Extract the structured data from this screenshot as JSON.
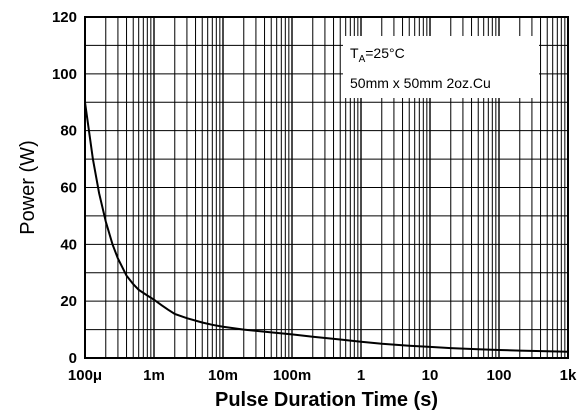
{
  "chart_data": {
    "type": "line",
    "title": "",
    "xlabel": "Pulse Duration Time (s)",
    "ylabel": "Power (W)",
    "x_scale": "log",
    "xlim": [
      0.0001,
      1000
    ],
    "ylim": [
      0,
      120
    ],
    "x_ticks": [
      {
        "value": 0.0001,
        "label": "100μ"
      },
      {
        "value": 0.001,
        "label": "1m"
      },
      {
        "value": 0.01,
        "label": "10m"
      },
      {
        "value": 0.1,
        "label": "100m"
      },
      {
        "value": 1,
        "label": "1"
      },
      {
        "value": 10,
        "label": "10"
      },
      {
        "value": 100,
        "label": "100"
      },
      {
        "value": 1000,
        "label": "1k"
      }
    ],
    "y_ticks": [
      {
        "value": 0,
        "label": "0"
      },
      {
        "value": 20,
        "label": "20"
      },
      {
        "value": 40,
        "label": "40"
      },
      {
        "value": 60,
        "label": "60"
      },
      {
        "value": 80,
        "label": "80"
      },
      {
        "value": 100,
        "label": "100"
      },
      {
        "value": 120,
        "label": "120"
      }
    ],
    "y_minor_step": 10,
    "grid": true,
    "annotations": {
      "ta_main": "T",
      "ta_sub": "A",
      "ta_rest": "=25°C",
      "board": "50mm x 50mm 2oz.Cu"
    },
    "series": [
      {
        "x": [
          0.0001,
          0.00013,
          0.00016,
          0.0002,
          0.00025,
          0.0003,
          0.0004,
          0.0005,
          0.0006,
          0.0008,
          0.001,
          0.0013,
          0.0016,
          0.002,
          0.003,
          0.005,
          0.007,
          0.01,
          0.02,
          0.05,
          0.1,
          0.2,
          0.5,
          1,
          2,
          5,
          10,
          20,
          50,
          100,
          200,
          500,
          1000
        ],
        "values": [
          90,
          70,
          58,
          48,
          40,
          35,
          29,
          26,
          24,
          22,
          20.5,
          18.5,
          17,
          15.5,
          14,
          12.5,
          11.7,
          11,
          10,
          9,
          8.3,
          7.5,
          6.5,
          5.7,
          5,
          4.3,
          3.9,
          3.5,
          3.1,
          2.8,
          2.6,
          2.4,
          2.2
        ]
      }
    ]
  }
}
